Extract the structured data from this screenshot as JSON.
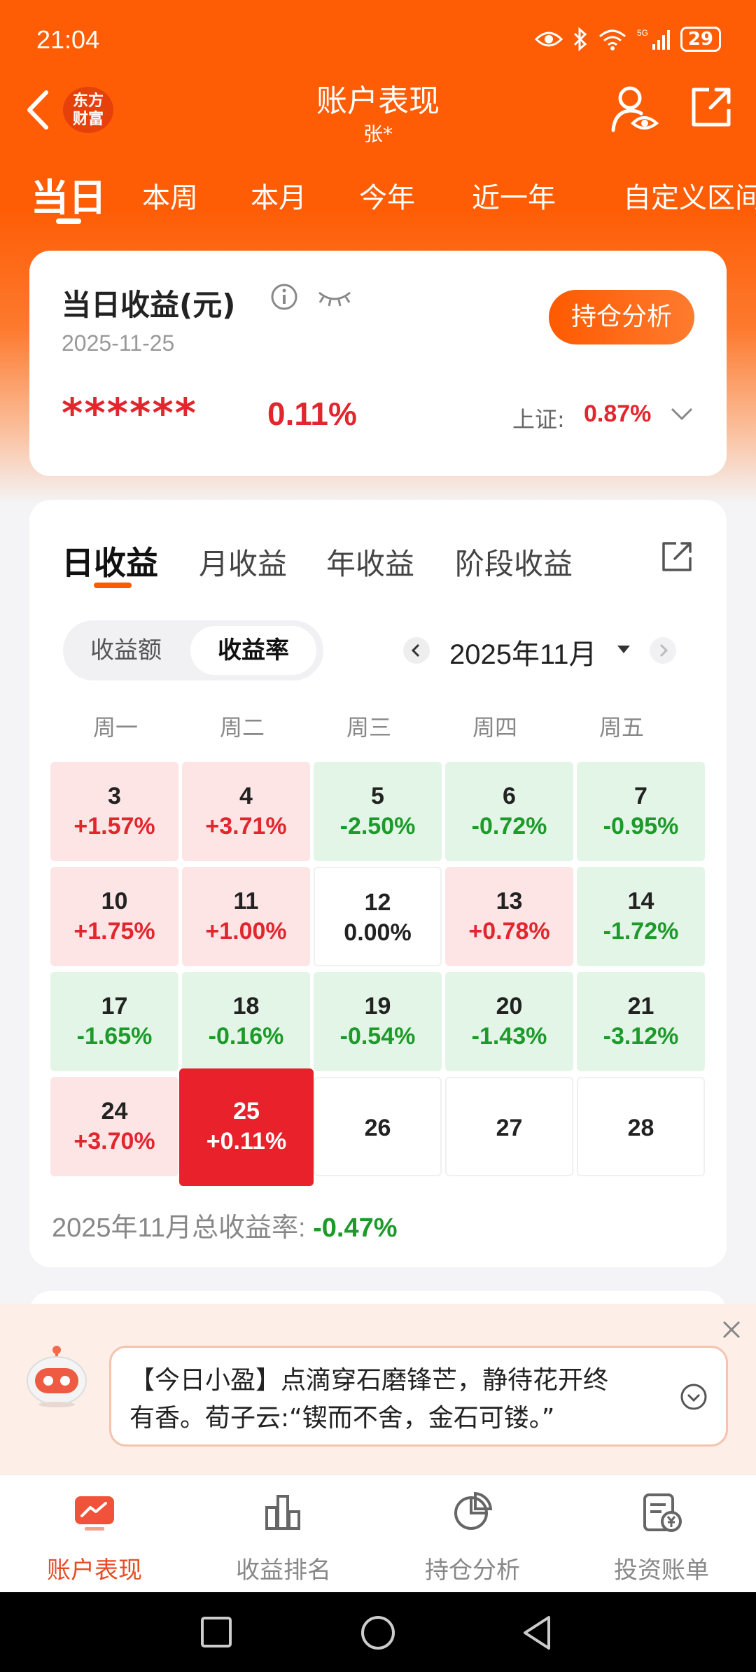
{
  "status_bar": {
    "time": "21:04",
    "battery": "29"
  },
  "header": {
    "logo_line1": "东方",
    "logo_line2": "财富",
    "title": "账户表现",
    "subtitle": "张*"
  },
  "period_tabs": [
    "当日",
    "本周",
    "本月",
    "今年",
    "近一年",
    "自定义区间"
  ],
  "summary": {
    "title": "当日收益(元)",
    "date": "2025-11-25",
    "holding_button": "持仓分析",
    "masked_amount": "******",
    "rate": "0.11%",
    "index_label": "上证:",
    "index_value": "0.87%"
  },
  "returns": {
    "tabs": [
      "日收益",
      "月收益",
      "年收益",
      "阶段收益"
    ],
    "toggle": [
      "收益额",
      "收益率"
    ],
    "month": "2025年11月",
    "weekdays": [
      "周一",
      "周二",
      "周三",
      "周四",
      "周五"
    ],
    "days": [
      {
        "day": "3",
        "rate": "+1.57%"
      },
      {
        "day": "4",
        "rate": "+3.71%"
      },
      {
        "day": "5",
        "rate": "-2.50%"
      },
      {
        "day": "6",
        "rate": "-0.72%"
      },
      {
        "day": "7",
        "rate": "-0.95%"
      },
      {
        "day": "10",
        "rate": "+1.75%"
      },
      {
        "day": "11",
        "rate": "+1.00%"
      },
      {
        "day": "12",
        "rate": "0.00%"
      },
      {
        "day": "13",
        "rate": "+0.78%"
      },
      {
        "day": "14",
        "rate": "-1.72%"
      },
      {
        "day": "17",
        "rate": "-1.65%"
      },
      {
        "day": "18",
        "rate": "-0.16%"
      },
      {
        "day": "19",
        "rate": "-0.54%"
      },
      {
        "day": "20",
        "rate": "-1.43%"
      },
      {
        "day": "21",
        "rate": "-3.12%"
      },
      {
        "day": "24",
        "rate": "+3.70%"
      },
      {
        "day": "25",
        "rate": "+0.11%"
      },
      {
        "day": "26",
        "rate": ""
      },
      {
        "day": "27",
        "rate": ""
      },
      {
        "day": "28",
        "rate": ""
      }
    ],
    "total_label": "2025年11月总收益率:",
    "total_value": "-0.47%"
  },
  "tip": {
    "line1": "【今日小盈】点滴穿石磨锋芒，静待花开终",
    "line2": "有香。荀子云:“锲而不舍，金石可镂。”"
  },
  "tabbar": [
    "账户表现",
    "收益排名",
    "持仓分析",
    "投资账单"
  ],
  "colors": {
    "brand": "#fe5d06",
    "up": "#e2262e",
    "down": "#1c9a2a"
  }
}
